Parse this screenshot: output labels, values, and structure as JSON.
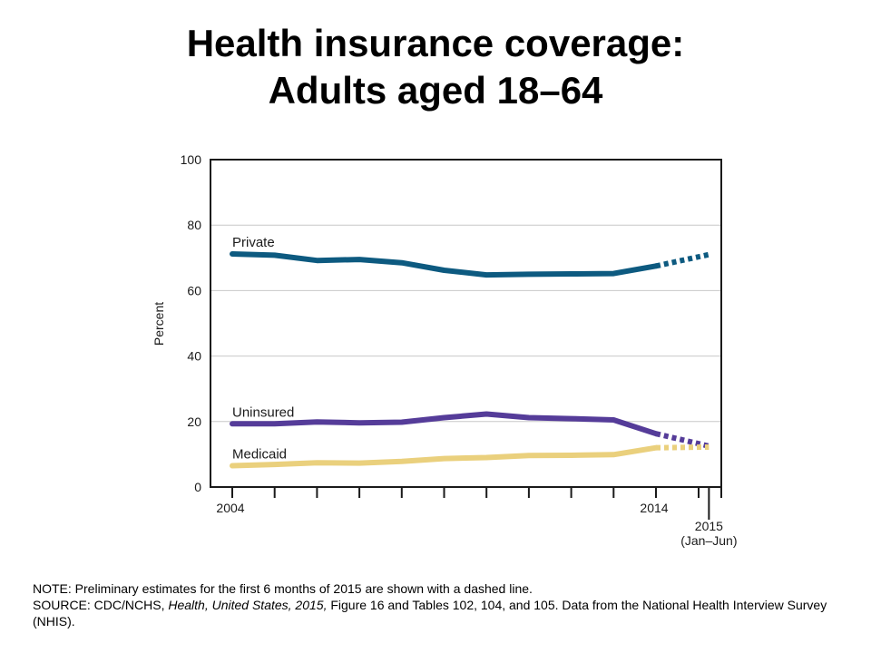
{
  "title_line1": "Health insurance coverage:",
  "title_line2": "Adults aged 18–64",
  "note": {
    "note_text": "NOTE: Preliminary estimates for the first 6 months of 2015 are shown with a dashed line.",
    "source_prefix": "SOURCE: CDC/NCHS, ",
    "source_italic": "Health, United States, 2015,",
    "source_suffix": " Figure 16 and Tables 102, 104, and 105. Data from the National Health Interview Survey (NHIS)."
  },
  "chart_data": {
    "type": "line",
    "title": "",
    "xlabel": "",
    "ylabel": "Percent",
    "ylim": [
      0,
      100
    ],
    "yticks": [
      0,
      20,
      40,
      60,
      80,
      100
    ],
    "x": [
      2004,
      2005,
      2006,
      2007,
      2008,
      2009,
      2010,
      2011,
      2012,
      2013,
      2014,
      2015.25
    ],
    "x_tick_positions": [
      2004,
      2005,
      2006,
      2007,
      2008,
      2009,
      2010,
      2011,
      2012,
      2013,
      2014,
      2015.25
    ],
    "x_tick_labels": [
      {
        "x": 2004,
        "lines": [
          "2004"
        ]
      },
      {
        "x": 2014,
        "lines": [
          "2014"
        ]
      },
      {
        "x": 2015.25,
        "lines": [
          "2015",
          "(Jan–Jun)"
        ]
      }
    ],
    "dashed_segment": "2014 to 2015 (Jan–Jun)",
    "series": [
      {
        "name": "Private",
        "color": "#0d5a80",
        "values": [
          71.2,
          70.8,
          69.2,
          69.5,
          68.5,
          66.2,
          64.8,
          65.0,
          65.1,
          65.2,
          67.5,
          71.0
        ]
      },
      {
        "name": "Uninsured",
        "color": "#553c99",
        "values": [
          19.3,
          19.3,
          19.9,
          19.6,
          19.8,
          21.2,
          22.3,
          21.2,
          20.9,
          20.5,
          16.3,
          12.5
        ]
      },
      {
        "name": "Medicaid",
        "color": "#ead07d",
        "values": [
          6.5,
          6.9,
          7.4,
          7.3,
          7.8,
          8.7,
          9.0,
          9.6,
          9.7,
          9.9,
          12.0,
          12.2
        ]
      }
    ]
  }
}
